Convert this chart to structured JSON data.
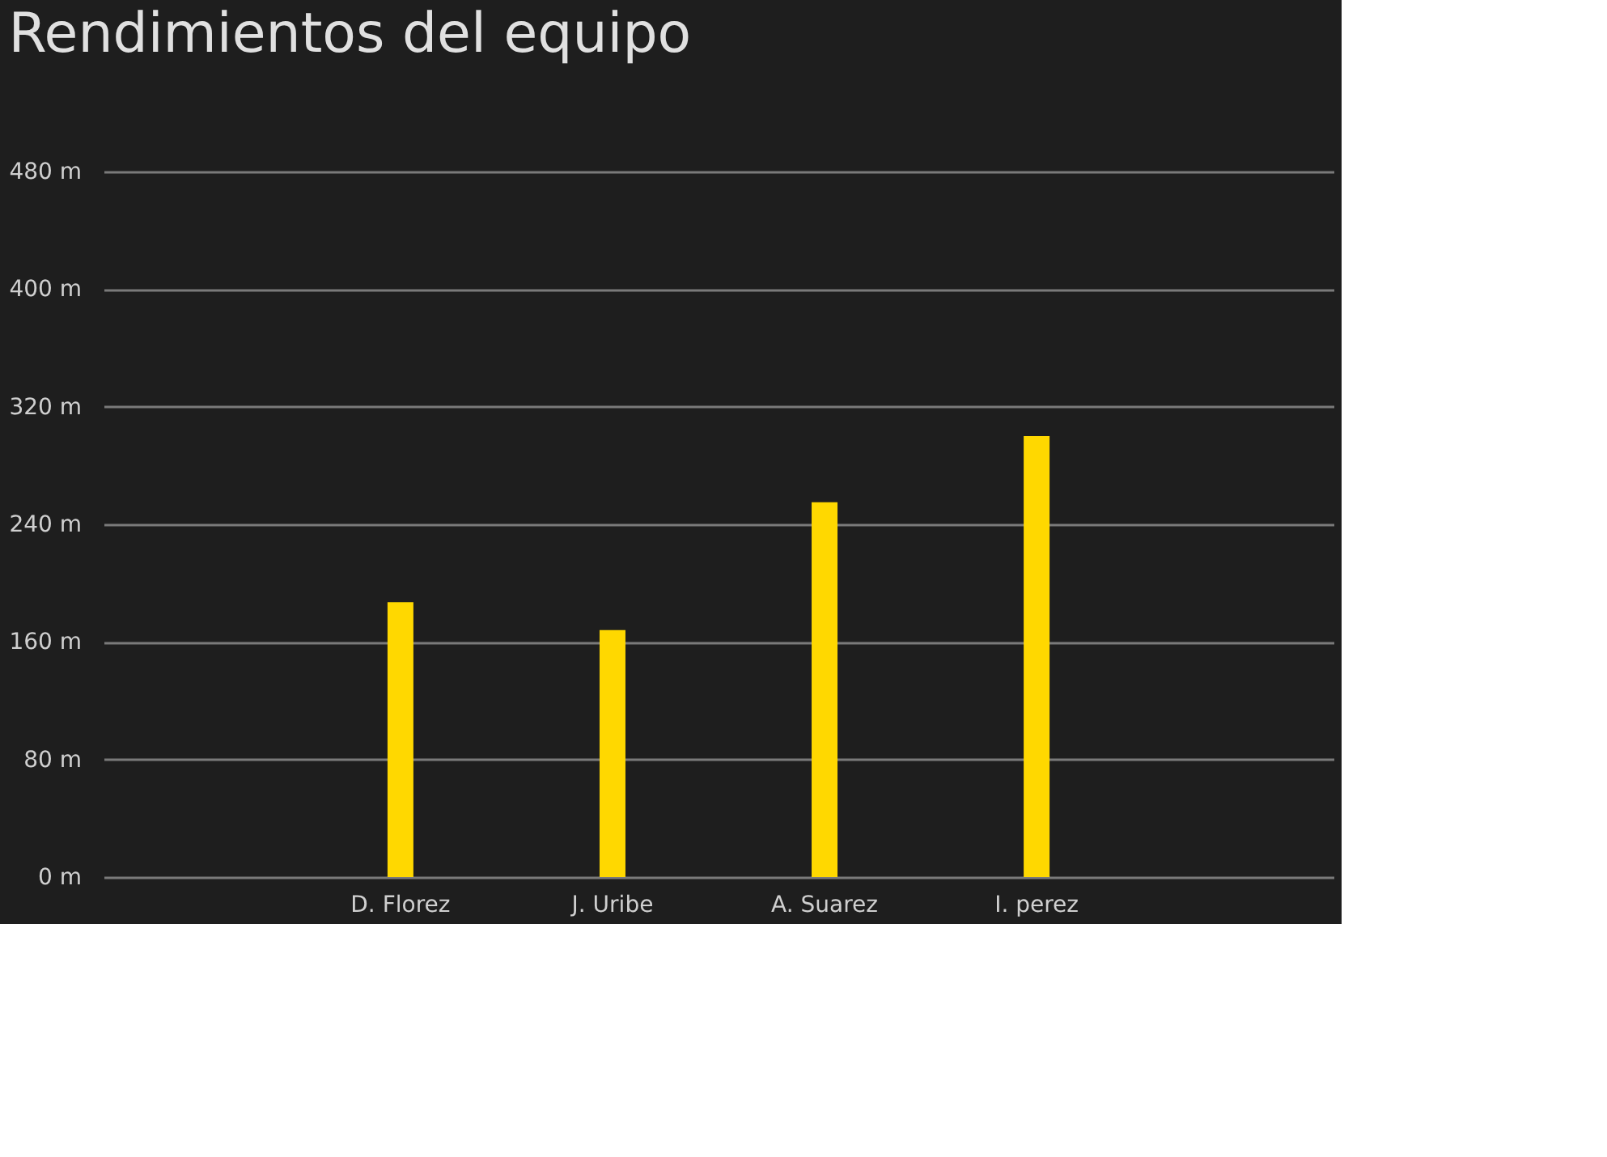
{
  "chart_data": {
    "type": "bar",
    "title": "Rendimientos del equipo",
    "categories": [
      "D. Florez",
      "J. Uribe",
      "A. Suarez",
      "I. perez"
    ],
    "values": [
      187,
      168,
      255,
      300
    ],
    "color": "#ffd800",
    "ylim": [
      0,
      480
    ],
    "yticks": [
      {
        "value": 0,
        "label": "0 m"
      },
      {
        "value": 80,
        "label": "80 m"
      },
      {
        "value": 160,
        "label": "160 m"
      },
      {
        "value": 240,
        "label": "240 m"
      },
      {
        "value": 320,
        "label": "320 m"
      },
      {
        "value": 400,
        "label": "400 m"
      },
      {
        "value": 480,
        "label": "480 m"
      }
    ],
    "grid": "y"
  }
}
